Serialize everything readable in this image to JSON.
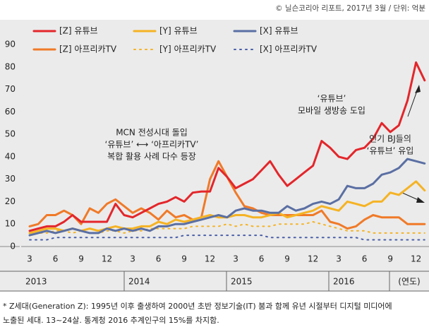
{
  "source": "© 닐슨코리아 리포트, 2017년 3월 / 단위: 억분",
  "chart_data": {
    "type": "line",
    "categories": [
      "3",
      null,
      null,
      "6",
      null,
      null,
      "9",
      null,
      null,
      "12",
      null,
      null,
      "3",
      null,
      null,
      "6",
      null,
      null,
      "9",
      null,
      null,
      "12",
      null,
      null,
      "3",
      null,
      null,
      "6",
      null,
      null,
      "9",
      null,
      null,
      "12",
      null,
      null,
      "3",
      null,
      null,
      "6",
      null,
      null,
      "9",
      null,
      null,
      "12",
      null
    ],
    "year_labels": [
      "2013",
      "2014",
      "2015",
      "2016"
    ],
    "x_unit": "(연도)",
    "ylim": [
      0,
      90
    ],
    "yticks": [
      0,
      10,
      20,
      30,
      40,
      50,
      60,
      70,
      80,
      90
    ],
    "series": [
      {
        "name": "[Z] 유튜브",
        "color": "#e3262b",
        "dash": "solid",
        "values": [
          7,
          8,
          9,
          9,
          11,
          14,
          11,
          11,
          11,
          11,
          19,
          14,
          13,
          15,
          17,
          19,
          20,
          22,
          20,
          24,
          24.5,
          24.5,
          35,
          31,
          26,
          28,
          30,
          34,
          38,
          32,
          27,
          30,
          33,
          36,
          47,
          44,
          40,
          39,
          43,
          44,
          48,
          55,
          51,
          54,
          65,
          82,
          74
        ]
      },
      {
        "name": "[Y] 유튜브",
        "color": "#f5b324",
        "dash": "solid",
        "values": [
          6,
          7,
          8,
          8,
          7,
          8,
          7,
          8,
          7,
          8,
          9,
          8,
          8,
          9,
          9,
          11,
          10,
          12,
          11,
          12,
          13,
          14,
          13,
          13,
          14,
          14,
          13,
          13,
          14,
          15,
          13,
          14,
          15,
          16,
          18,
          17,
          16,
          20,
          19,
          18,
          20,
          20,
          24,
          23,
          26,
          29,
          25
        ]
      },
      {
        "name": "[X] 유튜브",
        "color": "#5a6fa3",
        "dash": "solid",
        "values": [
          5,
          6,
          7,
          6,
          7,
          8,
          7,
          6,
          6,
          8,
          7,
          8,
          7,
          8,
          7,
          9,
          9,
          10,
          10,
          11,
          12,
          13,
          14,
          13,
          16,
          17,
          16,
          16,
          15,
          15,
          18,
          16,
          17,
          19,
          20,
          19,
          21,
          27,
          26,
          26,
          28,
          32,
          33,
          35,
          39,
          38,
          37
        ]
      },
      {
        "name": "[Z] 아프리카TV",
        "color": "#f07a28",
        "dash": "solid",
        "values": [
          9,
          10,
          14,
          14,
          16,
          14,
          10,
          17,
          15,
          19,
          21,
          18,
          15,
          17,
          15,
          12,
          16,
          13,
          14,
          12,
          13,
          30,
          38,
          31,
          24,
          18,
          17,
          15,
          14,
          14,
          14,
          14,
          14,
          14,
          16,
          11,
          10,
          8,
          9,
          12,
          14,
          13,
          13,
          13,
          10,
          10,
          10
        ]
      },
      {
        "name": "[Y] 아프리카TV",
        "color": "#f5b324",
        "dash": "dotted",
        "values": [
          5,
          6,
          6,
          7,
          7,
          6,
          7,
          6,
          6,
          7,
          7,
          6,
          7,
          7,
          8,
          8,
          8,
          8,
          8,
          9,
          9,
          9,
          9,
          10,
          9,
          10,
          9,
          9,
          9,
          10,
          10,
          10,
          10,
          11,
          10,
          9,
          8,
          7,
          7,
          7,
          6,
          6,
          6,
          6,
          6,
          6,
          6
        ]
      },
      {
        "name": "[X] 아프리카TV",
        "color": "#4a5fa8",
        "dash": "dotted",
        "values": [
          3,
          3,
          3,
          4,
          4,
          4,
          4,
          4,
          4,
          4,
          4,
          4,
          4,
          4,
          4,
          4,
          4,
          4,
          5,
          5,
          5,
          5,
          5,
          5,
          5,
          5,
          5,
          5,
          4,
          4,
          4,
          4,
          4,
          4,
          4,
          4,
          4,
          4,
          4,
          3,
          3,
          3,
          3,
          3,
          3,
          3,
          3
        ]
      }
    ],
    "annotations": [
      [
        "MCN 전성시대 돌입",
        "‘유튜브’ ⟷ ‘아프리카TV’",
        "복합 활용 사례 다수 등장"
      ],
      [
        "‘유튜브’",
        "모바일 생방송 도입"
      ],
      [
        "인기 BJ들의",
        "‘유튜브’ 유입"
      ]
    ]
  },
  "footnote": [
    "* Z세대(Generation Z): 1995년 이후 출생하여 2000년 초반 정보기술(IT) 붐과 함께 유년 시절부터 디지털 미디어에",
    "노출된 세대. 13~24살. 통계청 2016 추계인구의 15%를 차지함."
  ]
}
